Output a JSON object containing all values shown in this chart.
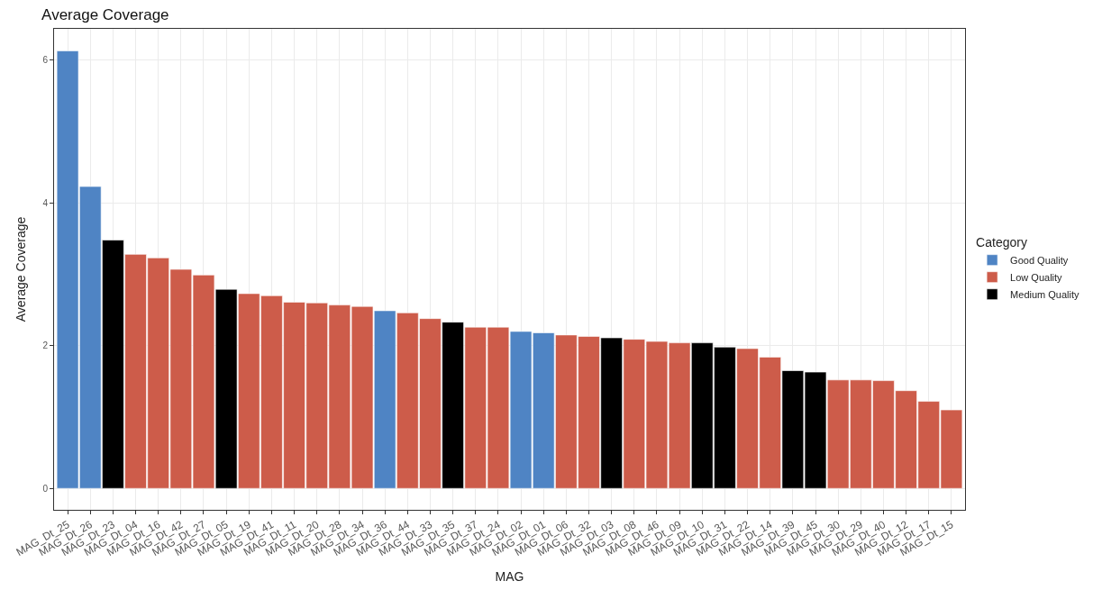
{
  "chart_data": {
    "type": "bar",
    "title": "Average Coverage",
    "xlabel": "MAG",
    "ylabel": "Average Coverage",
    "legend_title": "Category",
    "categories": [
      "MAG_Dt_25",
      "MAG_Dt_26",
      "MAG_Dt_23",
      "MAG_Dt_04",
      "MAG_Dt_16",
      "MAG_Dt_42",
      "MAG_Dt_27",
      "MAG_Dt_05",
      "MAG_Dt_19",
      "MAG_Dt_41",
      "MAG_Dt_11",
      "MAG_Dt_20",
      "MAG_Dt_28",
      "MAG_Dt_34",
      "MAG_Dt_36",
      "MAG_Dt_44",
      "MAG_Dt_33",
      "MAG_Dt_35",
      "MAG_Dt_37",
      "MAG_Dt_24",
      "MAG_Dt_02",
      "MAG_Dt_01",
      "MAG_Dt_06",
      "MAG_Dt_32",
      "MAG_Dt_03",
      "MAG_Dt_08",
      "MAG_Dt_46",
      "MAG_Dt_09",
      "MAG_Dt_10",
      "MAG_Dt_31",
      "MAG_Dt_22",
      "MAG_Dt_14",
      "MAG_Dt_39",
      "MAG_Dt_45",
      "MAG_Dt_30",
      "MAG_Dt_29",
      "MAG_Dt_40",
      "MAG_Dt_12",
      "MAG_Dt_17",
      "MAG_Dt_15"
    ],
    "series": [
      {
        "name": "Good Quality",
        "color": "#4f84c4",
        "values": [
          6.13,
          4.23,
          null,
          null,
          null,
          null,
          null,
          null,
          null,
          null,
          null,
          null,
          null,
          null,
          2.49,
          null,
          null,
          null,
          null,
          null,
          2.2,
          2.18,
          null,
          null,
          null,
          null,
          null,
          null,
          null,
          null,
          null,
          null,
          null,
          null,
          null,
          null,
          null,
          null,
          null,
          null
        ]
      },
      {
        "name": "Low Quality",
        "color": "#cd5c4a",
        "values": [
          null,
          null,
          null,
          3.28,
          3.23,
          3.07,
          2.99,
          null,
          2.73,
          2.7,
          2.61,
          2.6,
          2.57,
          2.55,
          null,
          2.46,
          2.38,
          null,
          2.26,
          2.26,
          null,
          null,
          2.15,
          2.13,
          null,
          2.09,
          2.06,
          2.04,
          null,
          null,
          1.96,
          1.84,
          null,
          null,
          1.52,
          1.52,
          1.51,
          1.37,
          1.22,
          1.1
        ]
      },
      {
        "name": "Medium Quality",
        "color": "#000000",
        "values": [
          null,
          null,
          3.48,
          null,
          null,
          null,
          null,
          2.79,
          null,
          null,
          null,
          null,
          null,
          null,
          null,
          null,
          null,
          2.33,
          null,
          null,
          null,
          null,
          null,
          null,
          2.11,
          null,
          null,
          null,
          2.04,
          1.98,
          null,
          null,
          1.65,
          1.63,
          null,
          null,
          null,
          null,
          null,
          null
        ]
      }
    ],
    "ylim": [
      -0.3,
      6.44
    ],
    "yticks": [
      0,
      2,
      4,
      6
    ],
    "grid": true,
    "legend": "right"
  }
}
